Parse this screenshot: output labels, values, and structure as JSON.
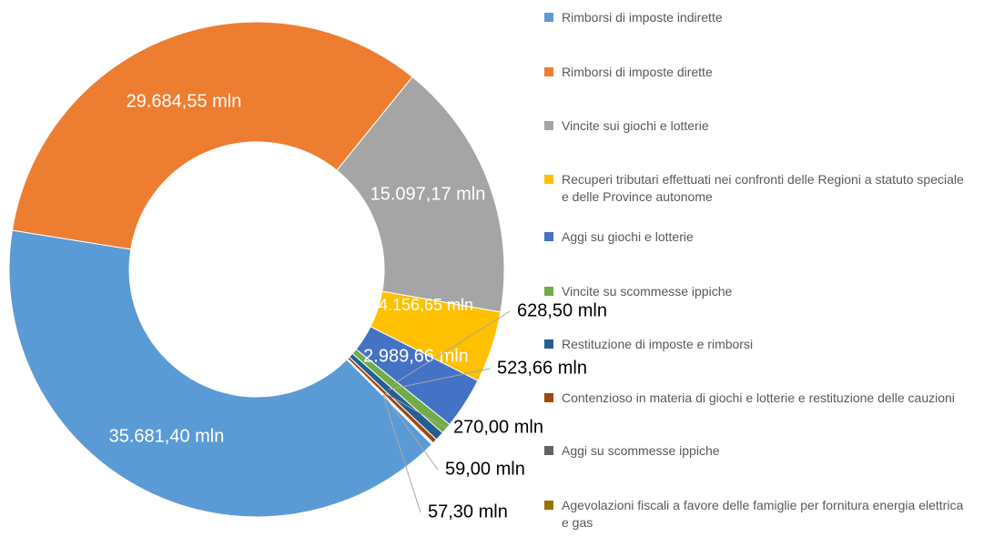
{
  "chart_data": {
    "type": "donut",
    "categories": [
      "Rimborsi di imposte indirette",
      "Rimborsi di imposte dirette",
      "Vincite sui giochi e lotterie",
      "Recuperi tributari effettuati nei confronti delle Regioni a statuto speciale e delle Province autonome",
      "Aggi su giochi e lotterie",
      "Vincite su scommesse ippiche",
      "Restituzione di imposte e rimborsi",
      "Contenzioso in materia di giochi e lotterie e restituzione delle cauzioni",
      "Aggi su scommesse ippiche",
      "Agevolazioni fiscali a favore delle famiglie per fornitura energia elettrica e gas"
    ],
    "values": [
      35681.4,
      29684.55,
      15097.17,
      4156.65,
      2989.66,
      628.5,
      523.66,
      270.0,
      59.0,
      57.3
    ],
    "value_labels": [
      "35.681,40 mln",
      "29.684,55 mln",
      "15.097,17 mln",
      "4.156,65 mln",
      "2.989,66 mln",
      "628,50 mln",
      "523,66 mln",
      "270,00 mln",
      "59,00 mln",
      "57,30 mln"
    ],
    "colors": [
      "#5b9bd5",
      "#ed7d31",
      "#a5a5a5",
      "#ffc000",
      "#4472c4",
      "#70ad47",
      "#255e91",
      "#9e480e",
      "#636363",
      "#997300"
    ],
    "legend": "right"
  }
}
